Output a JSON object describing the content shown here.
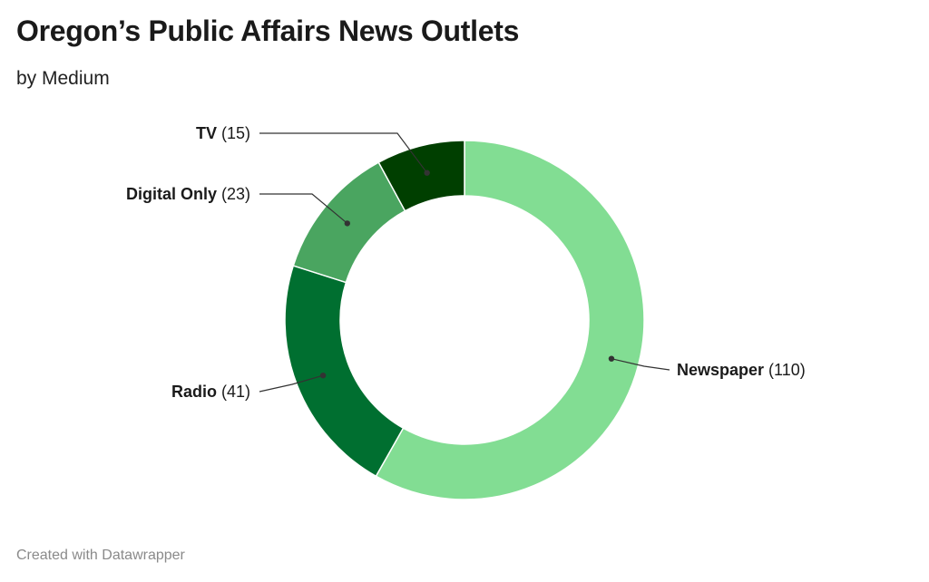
{
  "title": "Oregon’s Public Affairs News Outlets",
  "subtitle": "by Medium",
  "footer": "Created with Datawrapper",
  "chart_data": {
    "type": "pie",
    "variant": "donut",
    "slices": [
      {
        "label": "Newspaper",
        "value": 110,
        "color": "#82dd93"
      },
      {
        "label": "Radio",
        "value": 41,
        "color": "#006f30"
      },
      {
        "label": "Digital Only",
        "value": 23,
        "color": "#4aa560"
      },
      {
        "label": "TV",
        "value": 15,
        "color": "#003f00"
      }
    ]
  }
}
